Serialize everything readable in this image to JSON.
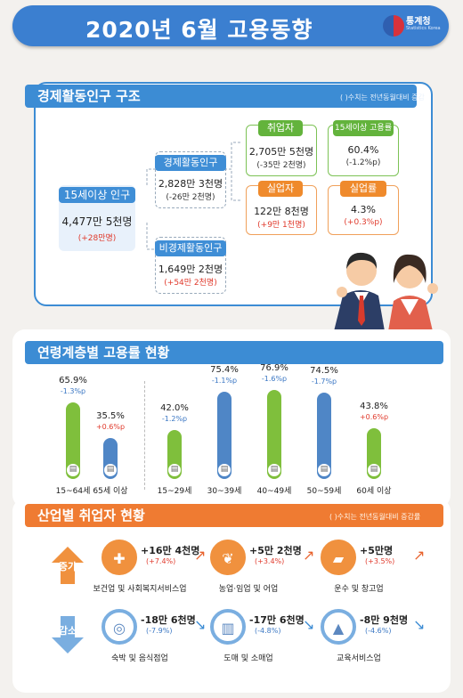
{
  "header": {
    "title": "2020년 6월 고용동향",
    "org": "통계청",
    "org_en": "Statistics Korea"
  },
  "structure": {
    "title": "경제활동인구 구조",
    "note": "( )수치는 전년동월대비 증감",
    "age15": {
      "label": "15세이상 인구",
      "value": "4,477만 5천명",
      "change": "(+28만명)"
    },
    "econ_active": {
      "label": "경제활동인구",
      "value": "2,828만 3천명",
      "change": "(-26만 2천명)"
    },
    "non_active": {
      "label": "비경제활동인구",
      "value": "1,649만 2천명",
      "change": "(+54만 2천명)"
    },
    "employed": {
      "label": "취업자",
      "value": "2,705만 5천명",
      "change": "(-35만 2천명)"
    },
    "emp_rate": {
      "label": "15세이상 고용률",
      "value": "60.4%",
      "change": "(-1.2%p)"
    },
    "unemployed": {
      "label": "실업자",
      "value": "122만 8천명",
      "change": "(+9만 1천명)"
    },
    "unemp_rate": {
      "label": "실업률",
      "value": "4.3%",
      "change": "(+0.3%p)"
    }
  },
  "age_section": {
    "title": "연령계층별 고용률 현황",
    "groups": [
      {
        "age": "15~64세",
        "rate": "65.9%",
        "delta": "-1.3%p",
        "color": "#7fbf3c",
        "dir": "down"
      },
      {
        "age": "65세 이상",
        "rate": "35.5%",
        "delta": "+0.6%p",
        "color": "#4f86c6",
        "dir": "up"
      },
      {
        "age": "15~29세",
        "rate": "42.0%",
        "delta": "-1.2%p",
        "color": "#7fbf3c",
        "dir": "down"
      },
      {
        "age": "30~39세",
        "rate": "75.4%",
        "delta": "-1.1%p",
        "color": "#4f86c6",
        "dir": "down"
      },
      {
        "age": "40~49세",
        "rate": "76.9%",
        "delta": "-1.6%p",
        "color": "#7fbf3c",
        "dir": "down"
      },
      {
        "age": "50~59세",
        "rate": "74.5%",
        "delta": "-1.7%p",
        "color": "#4f86c6",
        "dir": "down"
      },
      {
        "age": "60세 이상",
        "rate": "43.8%",
        "delta": "+0.6%p",
        "color": "#7fbf3c",
        "dir": "up"
      }
    ]
  },
  "industry": {
    "title": "산업별 취업자 현황",
    "note": "( )수치는 전년동월대비 증감률",
    "increase_label": "증가",
    "decrease_label": "감소",
    "increase": [
      {
        "name": "보건업 및 사회복지서비스업",
        "value": "+16만 4천명",
        "pct": "(+7.4%)",
        "icon": "first-aid-icon"
      },
      {
        "name": "농업·임업 및 어업",
        "value": "+5만 2천명",
        "pct": "(+3.4%)",
        "icon": "wheat-icon"
      },
      {
        "name": "운수 및 창고업",
        "value": "+5만명",
        "pct": "(+3.5%)",
        "icon": "truck-icon"
      }
    ],
    "decrease": [
      {
        "name": "숙박 및 음식점업",
        "value": "-18만 6천명",
        "pct": "(-7.9%)",
        "icon": "dining-icon"
      },
      {
        "name": "도매 및 소매업",
        "value": "-17만 6천명",
        "pct": "(-4.8%)",
        "icon": "basket-icon"
      },
      {
        "name": "교육서비스업",
        "value": "-8만 9천명",
        "pct": "(-4.6%)",
        "icon": "graduation-cap-icon"
      }
    ]
  }
}
